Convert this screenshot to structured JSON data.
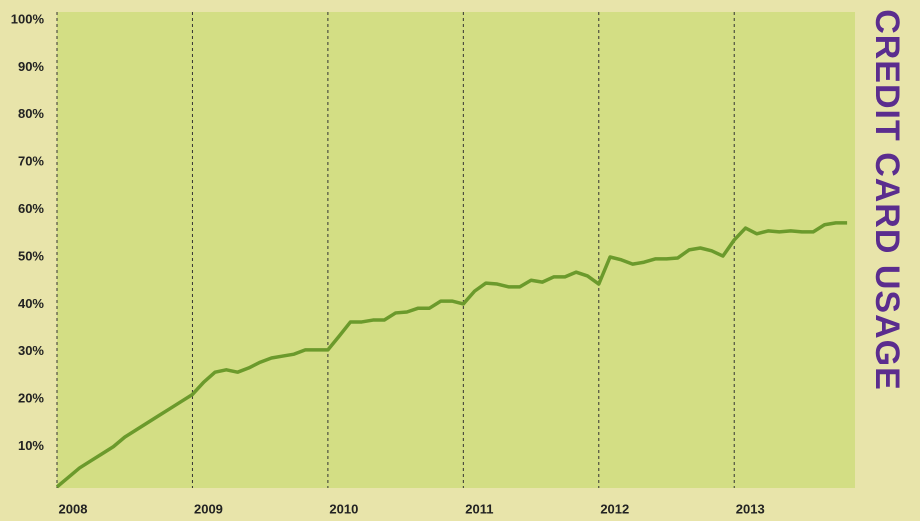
{
  "chart_data": {
    "type": "line",
    "title": "CREDIT CARD USAGE",
    "x": [
      0,
      1,
      2,
      3,
      4,
      5,
      6,
      7,
      8,
      9,
      10,
      11,
      12,
      13,
      14,
      15,
      16,
      17,
      18,
      19,
      20,
      21,
      22,
      23,
      24,
      25,
      26,
      27,
      28,
      29,
      30,
      31,
      32,
      33,
      34,
      35,
      36,
      37,
      38,
      39,
      40,
      41,
      42,
      43,
      44,
      45,
      46,
      47,
      48,
      49,
      50,
      51,
      52,
      53,
      54,
      55,
      56,
      57,
      58,
      59,
      60,
      61,
      62,
      63,
      64,
      65,
      66,
      67,
      68,
      69,
      70
    ],
    "series": [
      {
        "name": "Credit card usage",
        "color": "#6b9a2c",
        "values": [
          1.5,
          3.5,
          5.5,
          7,
          8.5,
          10,
          12,
          13.5,
          15,
          16.5,
          18,
          19.5,
          21,
          23.6,
          25.7,
          26.2,
          25.7,
          26.6,
          27.8,
          28.7,
          29.1,
          29.5,
          30.4,
          30.4,
          30.4,
          33.3,
          36.3,
          36.3,
          36.7,
          36.7,
          38.2,
          38.4,
          39.2,
          39.2,
          40.7,
          40.7,
          40.1,
          42.8,
          44.5,
          44.3,
          43.7,
          43.7,
          45.1,
          44.7,
          45.8,
          45.8,
          46.8,
          46,
          44.3,
          50,
          49.4,
          48.5,
          48.9,
          49.6,
          49.6,
          49.8,
          51.5,
          51.9,
          51.3,
          50.2,
          53.6,
          56.1,
          54.9,
          55.5,
          55.3,
          55.5,
          55.3,
          55.3,
          56.8,
          57.2,
          57.2
        ]
      }
    ],
    "xlim": [
      0,
      70.7
    ],
    "xticks": [
      {
        "value": 0,
        "label": "2008"
      },
      {
        "value": 12,
        "label": "2009"
      },
      {
        "value": 24,
        "label": "2010"
      },
      {
        "value": 36,
        "label": "2011"
      },
      {
        "value": 48,
        "label": "2012"
      },
      {
        "value": 60,
        "label": "2013"
      }
    ],
    "ylim": [
      0,
      100
    ],
    "yticks": [
      {
        "value": 10,
        "label": "10%"
      },
      {
        "value": 20,
        "label": "20%"
      },
      {
        "value": 30,
        "label": "30%"
      },
      {
        "value": 40,
        "label": "40%"
      },
      {
        "value": 50,
        "label": "50%"
      },
      {
        "value": 60,
        "label": "60%"
      },
      {
        "value": 70,
        "label": "70%"
      },
      {
        "value": 80,
        "label": "80%"
      },
      {
        "value": 90,
        "label": "90%"
      },
      {
        "value": 100,
        "label": "100%"
      }
    ],
    "grid": "x",
    "plot_color": "#d3de84"
  }
}
